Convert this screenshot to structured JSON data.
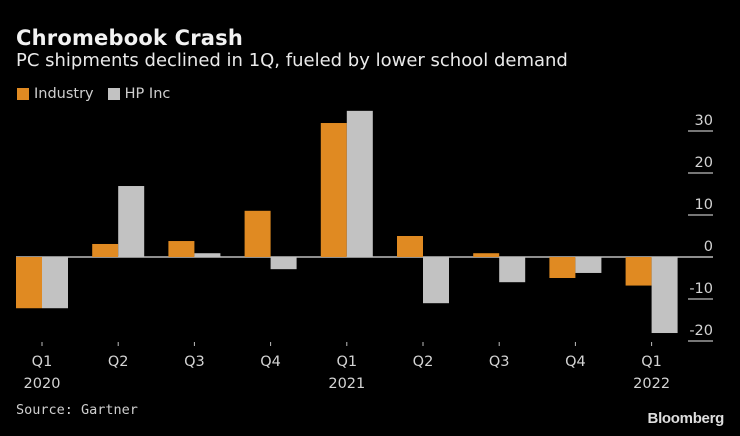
{
  "chart_data": {
    "type": "bar",
    "title": "Chromebook Crash",
    "subtitle": "PC shipments declined in 1Q, fueled by lower school demand",
    "xlabel": "",
    "ylabel": "",
    "categories": [
      "Q1 2020",
      "Q2 2020",
      "Q3 2020",
      "Q4 2020",
      "Q1 2021",
      "Q2 2021",
      "Q3 2021",
      "Q4 2021",
      "Q1 2022"
    ],
    "x_tick_labels": [
      {
        "line1": "Q1",
        "line2": "2020"
      },
      {
        "line1": "Q2",
        "line2": ""
      },
      {
        "line1": "Q3",
        "line2": ""
      },
      {
        "line1": "Q4",
        "line2": ""
      },
      {
        "line1": "Q1",
        "line2": "2021"
      },
      {
        "line1": "Q2",
        "line2": ""
      },
      {
        "line1": "Q3",
        "line2": ""
      },
      {
        "line1": "Q4",
        "line2": ""
      },
      {
        "line1": "Q1",
        "line2": "2022"
      }
    ],
    "series": [
      {
        "name": "Industry",
        "color": "#e08a22",
        "values": [
          -12.2,
          3.1,
          3.8,
          11.0,
          31.9,
          5.0,
          0.9,
          -5.0,
          -6.8
        ]
      },
      {
        "name": "HP Inc",
        "color": "#c2c2c2",
        "values": [
          -12.2,
          16.9,
          0.9,
          -2.9,
          34.8,
          -11.0,
          -6.0,
          -3.8,
          -18.1
        ]
      }
    ],
    "ylim": [
      -20,
      35
    ],
    "y_ticks": [
      30,
      20,
      10,
      0,
      -10,
      -20
    ],
    "y_tick_labels": [
      "30",
      "20",
      "10",
      "0",
      "-10",
      "-20"
    ],
    "y_axis_side": "right",
    "grid": false,
    "legend_position": "top-left"
  },
  "footer": {
    "source": "Source: Gartner",
    "brand": "Bloomberg"
  }
}
